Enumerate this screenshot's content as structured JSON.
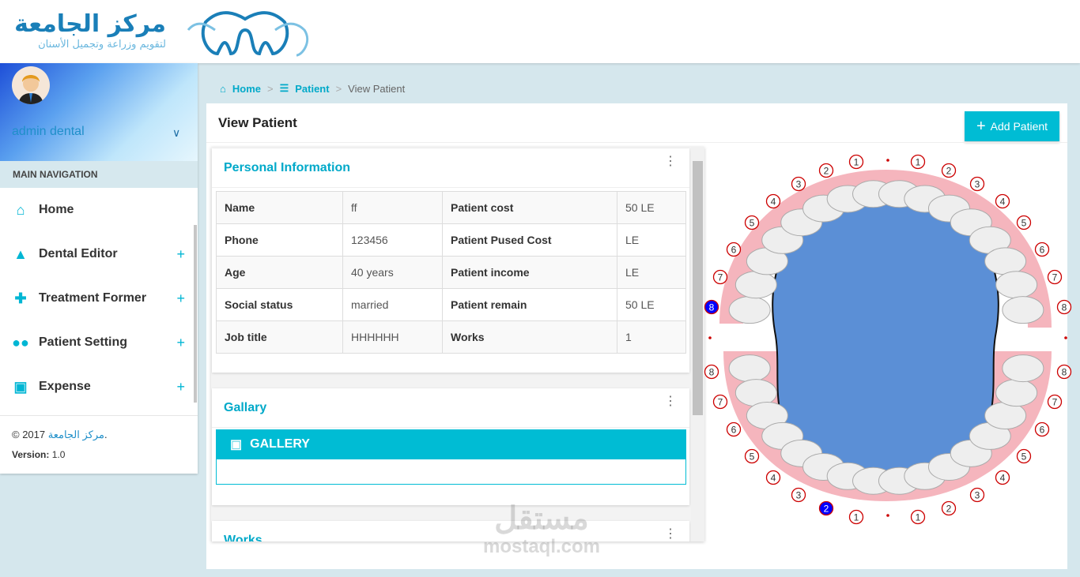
{
  "header": {
    "logo_text": "مركز الجامعة",
    "logo_subtitle": "لتقويم وزراعة وتجميل الأسنان"
  },
  "sidebar": {
    "user_name": "admin dental",
    "nav_header": "MAIN NAVIGATION",
    "items": [
      {
        "label": "Home",
        "icon": "home-icon",
        "expandable": false
      },
      {
        "label": "Dental Editor",
        "icon": "bell-icon",
        "expandable": true
      },
      {
        "label": "Treatment Former",
        "icon": "medical-icon",
        "expandable": true
      },
      {
        "label": "Patient Setting",
        "icon": "people-icon",
        "expandable": true
      },
      {
        "label": "Expense",
        "icon": "wallet-icon",
        "expandable": true
      }
    ],
    "footer": {
      "copyright": "© 2017",
      "brand": "مركز الجامعة",
      "dot": ".",
      "version_label": "Version:",
      "version": "1.0"
    }
  },
  "breadcrumb": {
    "home": "Home",
    "patient": "Patient",
    "current": "View Patient",
    "separator": ">"
  },
  "page": {
    "title": "View Patient",
    "add_button": "Add Patient"
  },
  "personal": {
    "title": "Personal Information",
    "rows": [
      [
        "Name",
        "ff",
        "Patient cost",
        "50 LE"
      ],
      [
        "Phone",
        "123456",
        "Patient Pused Cost",
        "LE"
      ],
      [
        "Age",
        "40 years",
        "Patient income",
        "LE"
      ],
      [
        "Social status",
        "married",
        "Patient remain",
        "50 LE"
      ],
      [
        "Job title",
        "HHHHHH",
        "Works",
        "1"
      ]
    ]
  },
  "gallery": {
    "title": "Gallary",
    "bar_label": "GALLERY"
  },
  "works": {
    "title": "Works"
  },
  "dental_chart": {
    "upper_numbers": [
      "8",
      "7",
      "6",
      "5",
      "4",
      "3",
      "2",
      "1",
      "1",
      "2",
      "3",
      "4",
      "5",
      "6",
      "7",
      "8"
    ],
    "lower_numbers": [
      "8",
      "7",
      "6",
      "5",
      "4",
      "3",
      "2",
      "1",
      "1",
      "2",
      "3",
      "4",
      "5",
      "6",
      "7",
      "8"
    ],
    "selected": [
      {
        "arch": "upper",
        "side": "right",
        "tooth": "8"
      },
      {
        "arch": "lower",
        "side": "right",
        "tooth": "2"
      }
    ],
    "selected_color": "#0000ff",
    "marker_color": "#cc0000"
  },
  "watermark": {
    "arabic": "مستقل",
    "latin": "mostaql.com"
  },
  "colors": {
    "accent": "#00bcd4",
    "link": "#00a9c9"
  }
}
